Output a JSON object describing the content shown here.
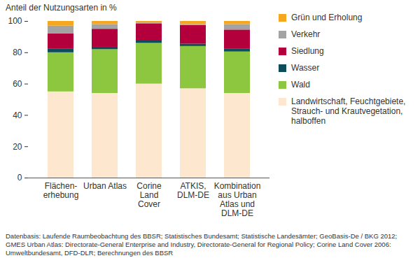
{
  "chart_data": {
    "type": "bar",
    "stacked": true,
    "ylabel": "Anteil der Nutzungsarten in %",
    "caption": "Datenbasis: Laufende Raumbeobachtung des BBSR; Statistisches  Bundesamt; Statistische Landesämter; GeoBasis-De / BKG 2012; GMES Urban Atlas: Directorate-General Enterprise and Industry, Directorate-General for Regional Policy; Corine Land Cover 2006: Umweltbundesamt, DFD-DLR; Berechnungen des BBSR",
    "categories": [
      "Flächen-\nerhebung",
      "Urban Atlas",
      "Corine\nLand\nCover",
      "ATKIS,\nDLM-DE",
      "Kombination\naus Urban\nAtlas und\nDLM-DE"
    ],
    "series": [
      {
        "name": "Landwirtschaft, Feuchtgebiete, Strauch- und Krautvegetation, halboffen",
        "color": "#fde8cf",
        "values": [
          55,
          54,
          60,
          57,
          54
        ]
      },
      {
        "name": "Wald",
        "color": "#8dc63f",
        "values": [
          25,
          28,
          26,
          27,
          26.5
        ]
      },
      {
        "name": "Wasser",
        "color": "#0e4c5a",
        "values": [
          2.5,
          1.5,
          1.5,
          1.5,
          2
        ]
      },
      {
        "name": "Siedlung",
        "color": "#b3003c",
        "values": [
          9.5,
          11.5,
          11,
          12,
          12
        ]
      },
      {
        "name": "Verkehr",
        "color": "#a3a3a3",
        "values": [
          5,
          3,
          0.5,
          0.5,
          3.5
        ]
      },
      {
        "name": "Grün und Erholung",
        "color": "#f5a81f",
        "values": [
          3,
          2,
          1,
          2,
          2
        ]
      }
    ],
    "ylim": [
      0,
      100
    ],
    "yticks": [
      0,
      20,
      40,
      60,
      80,
      100
    ],
    "grid": false,
    "legend": "right"
  }
}
